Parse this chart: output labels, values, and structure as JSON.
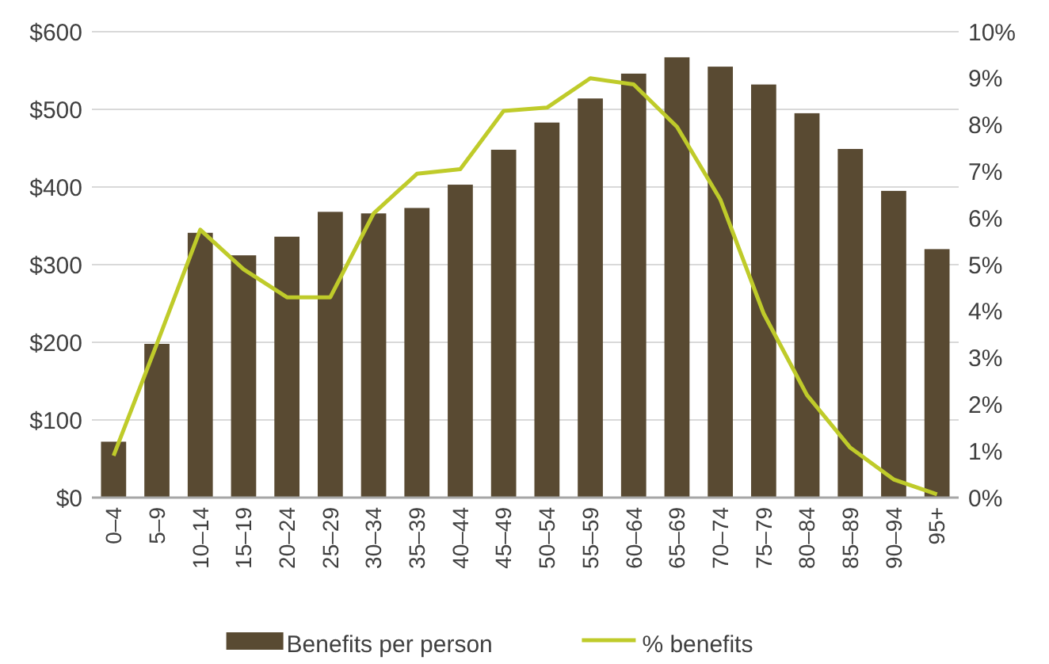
{
  "chart_data": {
    "type": "bar",
    "categories": [
      "0–4",
      "5–9",
      "10–14",
      "15–19",
      "20–24",
      "25–29",
      "30–34",
      "35–39",
      "40–44",
      "45–49",
      "50–54",
      "55–59",
      "60–64",
      "65–69",
      "70–74",
      "75–79",
      "80–84",
      "85–89",
      "90–94",
      "95+"
    ],
    "series": [
      {
        "name": "Benefits per person",
        "color": "#594a32",
        "values": [
          72,
          198,
          341,
          312,
          336,
          368,
          366,
          373,
          403,
          448,
          483,
          514,
          546,
          567,
          555,
          532,
          495,
          449,
          395,
          320
        ]
      },
      {
        "name": "% benefits",
        "type": "line",
        "axis": "y2",
        "color": "#bfcb2a",
        "values": [
          0.9,
          3.3,
          5.75,
          4.9,
          4.3,
          4.3,
          6.1,
          6.95,
          7.05,
          8.3,
          8.37,
          9.0,
          8.87,
          7.96,
          6.4,
          3.95,
          2.2,
          1.07,
          0.39,
          0.07
        ]
      }
    ],
    "ylim": [
      0,
      600
    ],
    "yticks": [
      {
        "value": 0,
        "label": "$0"
      },
      {
        "value": 100,
        "label": "$100"
      },
      {
        "value": 200,
        "label": "$200"
      },
      {
        "value": 300,
        "label": "$300"
      },
      {
        "value": 400,
        "label": "$400"
      },
      {
        "value": 500,
        "label": "$500"
      },
      {
        "value": 600,
        "label": "$600"
      }
    ],
    "y2lim": [
      0,
      10
    ],
    "y2ticks": [
      {
        "value": 0,
        "label": "0%"
      },
      {
        "value": 1,
        "label": "1%"
      },
      {
        "value": 2,
        "label": "2%"
      },
      {
        "value": 3,
        "label": "3%"
      },
      {
        "value": 4,
        "label": "4%"
      },
      {
        "value": 5,
        "label": "5%"
      },
      {
        "value": 6,
        "label": "6%"
      },
      {
        "value": 7,
        "label": "7%"
      },
      {
        "value": 8,
        "label": "8%"
      },
      {
        "value": 9,
        "label": "9%"
      },
      {
        "value": 10,
        "label": "10%"
      }
    ],
    "grid": "y",
    "legend": "bottom",
    "marker": "none",
    "line_style": "solid"
  }
}
